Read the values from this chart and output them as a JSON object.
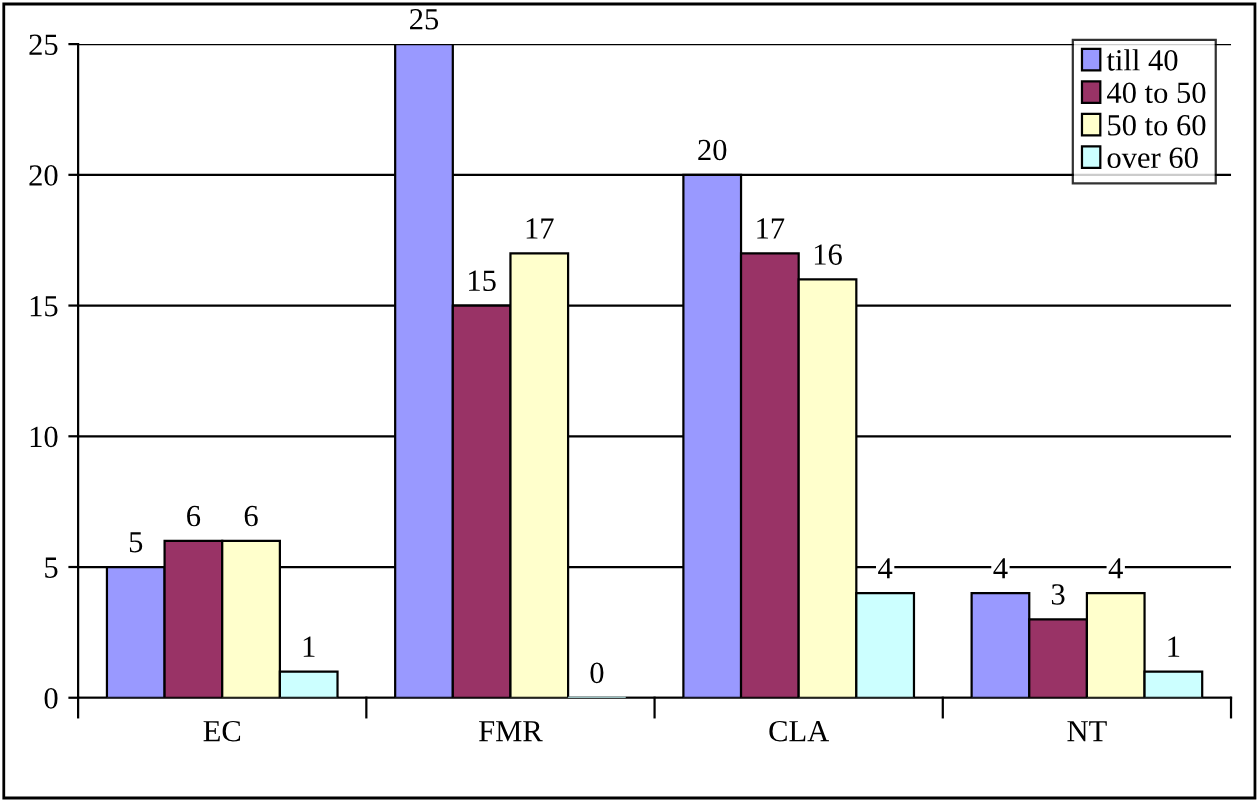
{
  "chart_data": {
    "type": "bar",
    "categories": [
      "EC",
      "FMR",
      "CLA",
      "NT"
    ],
    "series": [
      {
        "name": "till 40",
        "color": "#9999ff",
        "values": [
          5,
          25,
          20,
          4
        ]
      },
      {
        "name": "40 to 50",
        "color": "#993366",
        "values": [
          6,
          15,
          17,
          3
        ]
      },
      {
        "name": "50 to 60",
        "color": "#ffffcc",
        "values": [
          6,
          17,
          16,
          4
        ]
      },
      {
        "name": "over 60",
        "color": "#ccffff",
        "values": [
          1,
          0,
          4,
          1
        ]
      }
    ],
    "ylim": [
      0,
      25
    ],
    "yticks": [
      0,
      5,
      10,
      15,
      20,
      25
    ],
    "grid": "y",
    "legend": "top right",
    "data_labels": true
  }
}
